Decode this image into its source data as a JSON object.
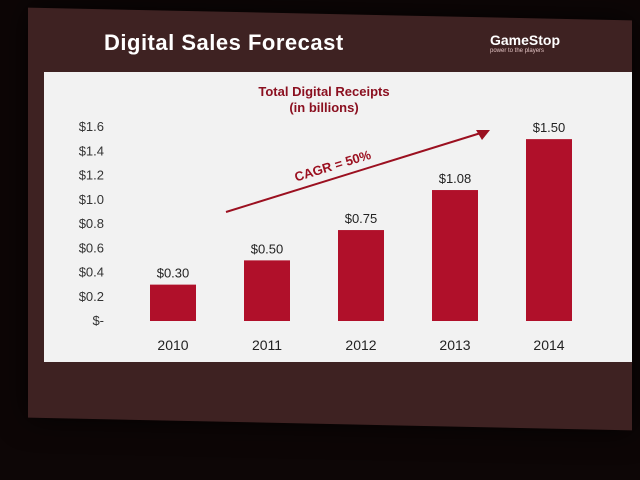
{
  "slide": {
    "title": "Digital Sales Forecast",
    "logo_text": "GameStop",
    "logo_tagline": "power to the players"
  },
  "colors": {
    "bar": "#b0102a",
    "accent": "#8b1020"
  },
  "chart_data": {
    "type": "bar",
    "title": "Total Digital Receipts",
    "subtitle": "(in billions)",
    "categories": [
      "2010",
      "2011",
      "2012",
      "2013",
      "2014"
    ],
    "values": [
      0.3,
      0.5,
      0.75,
      1.08,
      1.5
    ],
    "data_labels": [
      "$0.30",
      "$0.50",
      "$0.75",
      "$1.08",
      "$1.50"
    ],
    "ylim": [
      0,
      1.6
    ],
    "yticks": [
      0,
      0.2,
      0.4,
      0.6,
      0.8,
      1.0,
      1.2,
      1.4,
      1.6
    ],
    "ytick_labels": [
      "$-",
      "$0.2",
      "$0.4",
      "$0.6",
      "$0.8",
      "$1.0",
      "$1.2",
      "$1.4",
      "$1.6"
    ],
    "grid": false,
    "annotation": "CAGR = 50%"
  }
}
